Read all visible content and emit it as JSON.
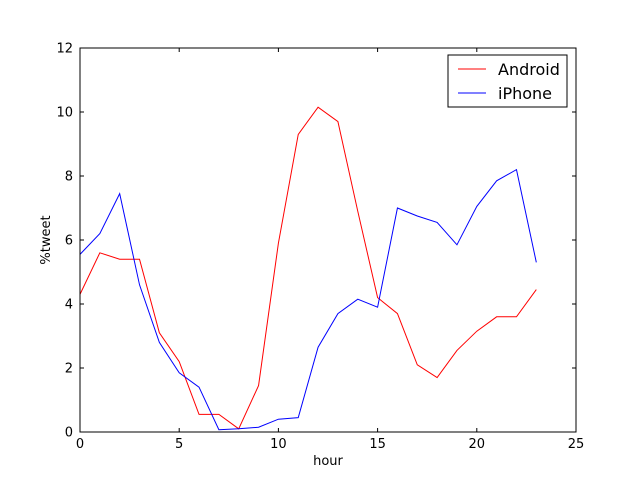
{
  "chart_data": {
    "type": "line",
    "xlabel": "hour",
    "ylabel": "%tweet",
    "xlim": [
      0,
      25
    ],
    "ylim": [
      0,
      12
    ],
    "xticks": [
      0,
      5,
      10,
      15,
      20,
      25
    ],
    "yticks": [
      0,
      2,
      4,
      6,
      8,
      10,
      12
    ],
    "grid": false,
    "legend_position": "top-right",
    "x": [
      0,
      1,
      2,
      3,
      4,
      5,
      6,
      7,
      8,
      9,
      10,
      11,
      12,
      13,
      14,
      15,
      16,
      17,
      18,
      19,
      20,
      21,
      22,
      23
    ],
    "series": [
      {
        "name": "Android",
        "color": "#ff0000",
        "values": [
          4.3,
          5.6,
          5.4,
          5.4,
          3.1,
          2.2,
          0.55,
          0.55,
          0.1,
          1.45,
          5.9,
          9.3,
          10.15,
          9.7,
          6.9,
          4.2,
          3.7,
          2.1,
          1.7,
          2.55,
          3.15,
          3.6,
          3.6,
          4.45
        ]
      },
      {
        "name": "iPhone",
        "color": "#0000ff",
        "values": [
          5.55,
          6.2,
          7.45,
          4.6,
          2.8,
          1.85,
          1.4,
          0.07,
          0.1,
          0.15,
          0.4,
          0.45,
          2.65,
          3.7,
          4.15,
          3.9,
          7.0,
          6.75,
          6.55,
          5.85,
          7.05,
          7.85,
          8.2,
          5.3
        ]
      }
    ]
  }
}
